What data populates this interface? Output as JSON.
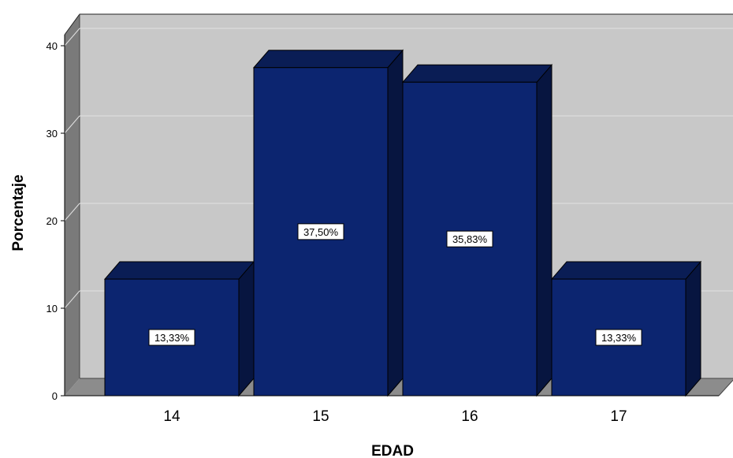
{
  "chart_data": {
    "type": "bar",
    "style": "3d",
    "categories": [
      "14",
      "15",
      "16",
      "17"
    ],
    "values": [
      13.33,
      37.5,
      35.83,
      13.33
    ],
    "data_labels": [
      "13,33%",
      "37,50%",
      "35,83%",
      "13,33%"
    ],
    "title": "",
    "xlabel": "EDAD",
    "ylabel": "Porcentaje",
    "ylim": [
      0,
      40
    ],
    "yticks": [
      "0",
      "10",
      "20",
      "30",
      "40"
    ],
    "grid": true,
    "legend": "none",
    "colors": {
      "bar_front": "#0c2570",
      "bar_top": "#0a1d55",
      "bar_side": "#071540",
      "plot_back": "#c8c8c8",
      "plot_floor": "#8c8c8c",
      "plot_wall": "#7a7a7a",
      "gridline": "#e2e2e2"
    }
  }
}
